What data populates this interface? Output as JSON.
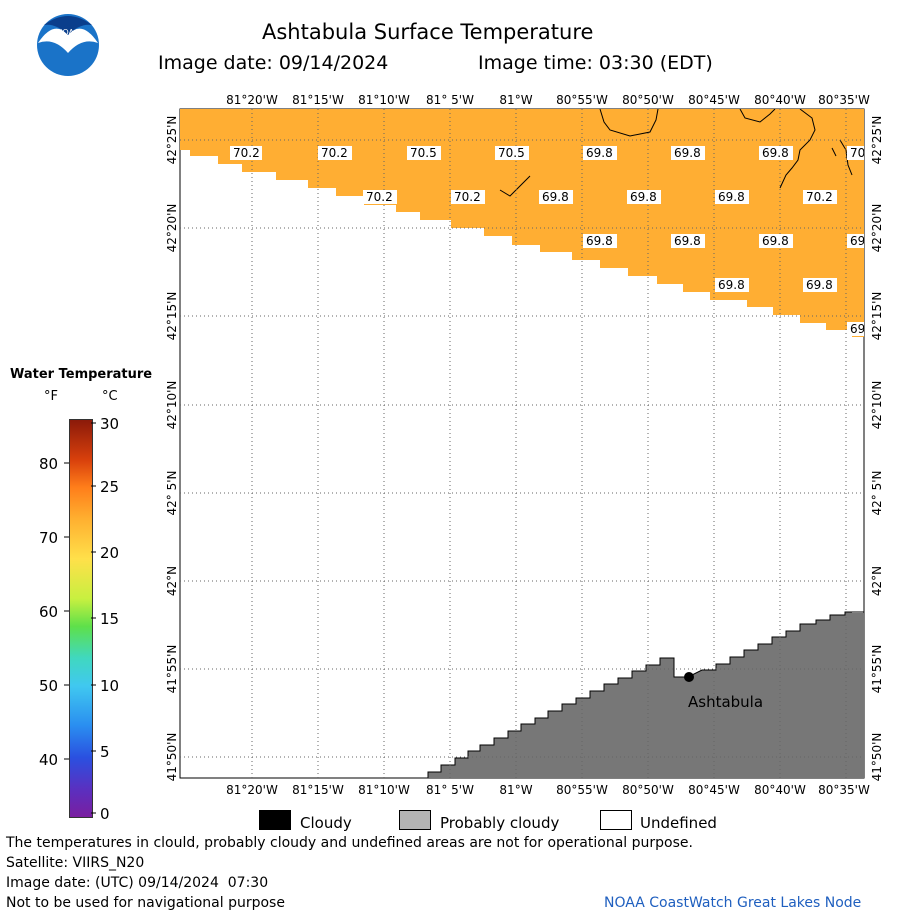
{
  "header": {
    "title": "Ashtabula Surface Temperature",
    "image_date_label": "Image date: 09/14/2024",
    "image_time_label": "Image time: 03:30 (EDT)"
  },
  "logo": {
    "text": "NOAA",
    "colors": {
      "outer": "#1a73c8",
      "inner": "#0a3e8c",
      "bird": "#ffffff"
    }
  },
  "legend": {
    "title": "Water Temperature",
    "unit_f": "°F",
    "unit_c": "°C",
    "fahrenheit_ticks": [
      "80",
      "70",
      "60",
      "50",
      "40"
    ],
    "celsius_ticks": [
      "30",
      "25",
      "20",
      "15",
      "10",
      "5",
      "0"
    ]
  },
  "map": {
    "colors": {
      "water_warm": "#ffae33",
      "land": "#777777",
      "grid": "#666666",
      "coast": "#000000"
    },
    "lon_labels": [
      "81°20'W",
      "81°15'W",
      "81°10'W",
      "81° 5'W",
      "81°W",
      "80°55'W",
      "80°50'W",
      "80°45'W",
      "80°40'W",
      "80°35'W"
    ],
    "lat_labels": [
      "42°25'N",
      "42°20'N",
      "42°15'N",
      "42°10'N",
      "42° 5'N",
      "42°N",
      "41°55'N",
      "41°50'N"
    ],
    "temperature_labels": [
      "70.2",
      "70.2",
      "70.5",
      "70.5",
      "69.8",
      "69.8",
      "69.8",
      "70",
      "70.2",
      "70.2",
      "69.8",
      "69.8",
      "69.8",
      "70.2",
      "69.8",
      "69.8",
      "69.8",
      "69",
      "69.8",
      "69.8",
      "69"
    ],
    "city": "Ashtabula"
  },
  "key": {
    "cloudy": "Cloudy",
    "probably_cloudy": "Probably cloudy",
    "undefined": "Undefined",
    "colors": {
      "cloudy": "#000000",
      "probably_cloudy": "#b4b4b4",
      "undefined": "#ffffff"
    }
  },
  "footer": {
    "disclaimer": "The temperatures in clould, probably cloudy and undefined areas are not for operational purpose.",
    "satellite": "Satellite: VIIRS_N20",
    "utc_date": "Image date: (UTC) 09/14/2024  07:30",
    "navigation": "Not to be used for navigational purpose",
    "credit": "NOAA CoastWatch Great Lakes Node"
  }
}
